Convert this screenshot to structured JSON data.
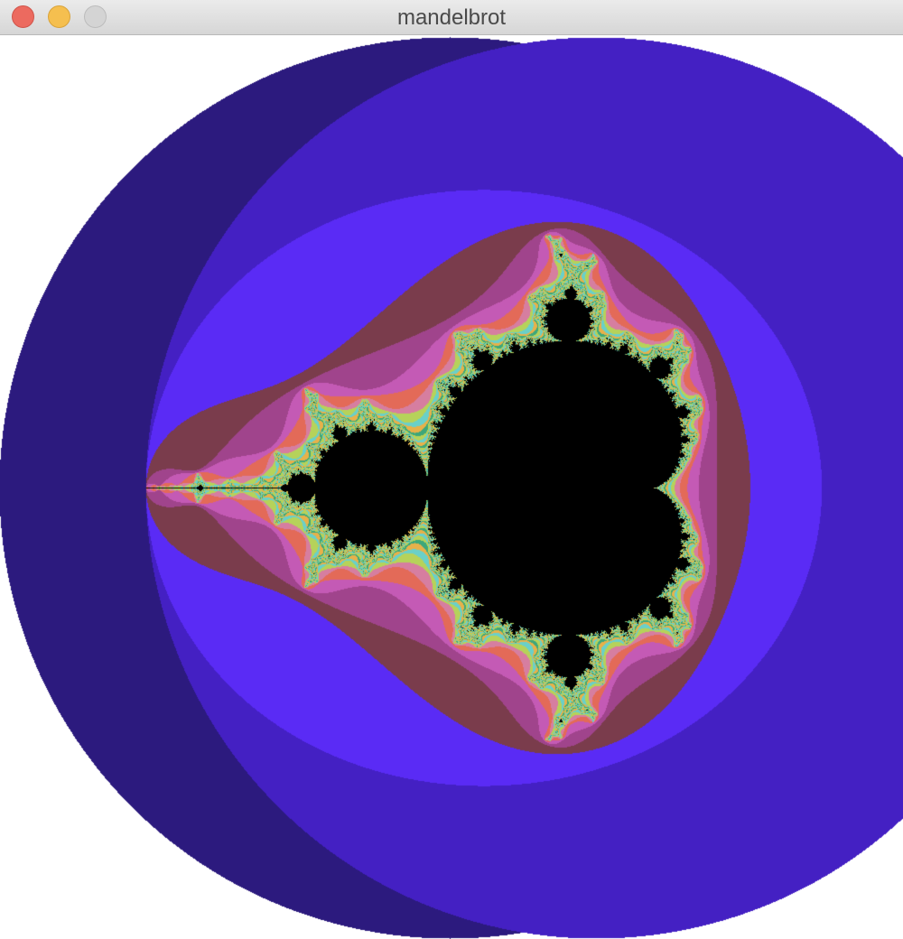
{
  "window": {
    "title": "mandelbrot",
    "controls": {
      "close": "close-icon",
      "minimize": "minimize-icon",
      "zoom": "zoom-icon"
    }
  },
  "fractal": {
    "type": "mandelbrot",
    "center": [
      -0.65,
      0.0
    ],
    "escape_radius": 2,
    "max_iterations": 60,
    "palette": {
      "inside": "#000000",
      "outer_band": "#160c3b",
      "band_2": "#2c1a7e",
      "band_3": "#4420c3",
      "band_4": "#5a2bf5",
      "band_5": "#7a3c4c",
      "band_6": "#a0448c",
      "band_7": "#c45ab5",
      "band_8": "#e36a58",
      "band_9": "#d67ea0",
      "high_iter": [
        "#3ea77a",
        "#b6d25a",
        "#6ad0c8",
        "#e7b14a"
      ],
      "background": "#ffffff"
    }
  }
}
